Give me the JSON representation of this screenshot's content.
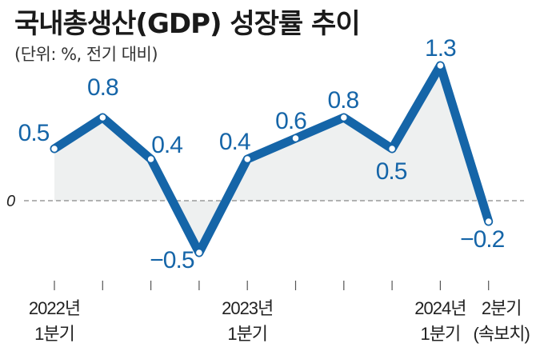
{
  "chart_data": {
    "type": "line",
    "title": "국내총생산(GDP) 성장률 추이",
    "subtitle": "(단위: %, 전기 대비)",
    "categories": [
      "2022Q1",
      "2022Q2",
      "2022Q3",
      "2022Q4",
      "2023Q1",
      "2023Q2",
      "2023Q3",
      "2023Q4",
      "2024Q1",
      "2024Q2"
    ],
    "values": [
      0.5,
      0.8,
      0.4,
      -0.5,
      0.4,
      0.6,
      0.8,
      0.5,
      1.3,
      -0.2
    ],
    "value_labels": [
      "0.5",
      "0.8",
      "0.4",
      "−0.5",
      "0.4",
      "0.6",
      "0.8",
      "0.5",
      "1.3",
      "−0.2"
    ],
    "zero_label": "0",
    "x_tick_labels": [
      {
        "index": 0,
        "line1": "2022년",
        "line2": "1분기"
      },
      {
        "index": 4,
        "line1": "2023년",
        "line2": "1분기"
      },
      {
        "index": 8,
        "line1": "2024년",
        "line2": "1분기"
      },
      {
        "index": 9,
        "line1": "2분기",
        "line2": "(속보치)"
      }
    ],
    "xlabel": "",
    "ylabel": "%",
    "ylim": [
      -0.75,
      1.55
    ],
    "grid": false,
    "colors": {
      "line": "#1565a8",
      "fill": "#eef0f0",
      "zero_line": "#888888"
    }
  }
}
